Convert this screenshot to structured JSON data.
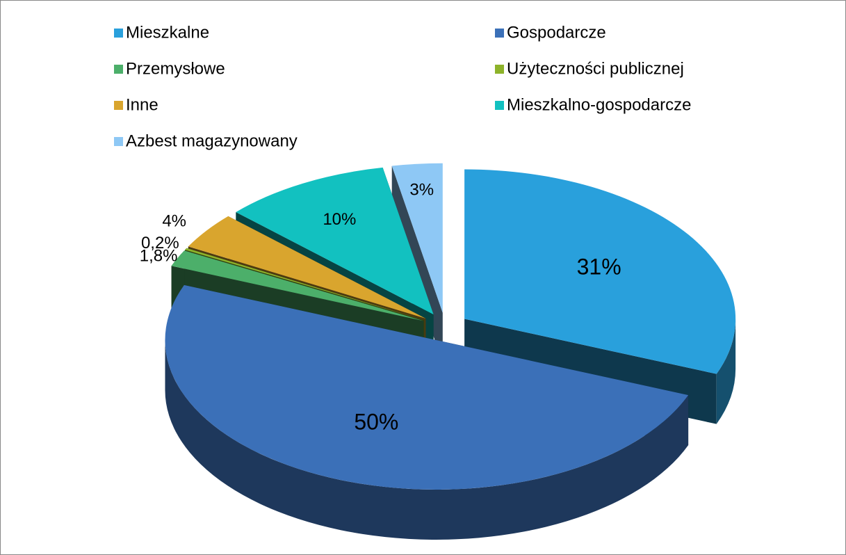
{
  "chart_data": {
    "type": "pie",
    "categories": [
      "Mieszkalne",
      "Gospodarcze",
      "Przemysłowe",
      "Użyteczności publicznej",
      "Inne",
      "Mieszkalno-gospodarcze",
      "Azbest magazynowany"
    ],
    "values": [
      31,
      50,
      1.8,
      0.2,
      4,
      10,
      3
    ],
    "value_labels": [
      "31%",
      "50%",
      "1,8%",
      "0,2%",
      "4%",
      "10%",
      "3%"
    ],
    "colors": [
      "#29a0dc",
      "#3b70b8",
      "#4caf6a",
      "#8db32a",
      "#d9a52e",
      "#12c1c0",
      "#8ec8f5"
    ],
    "legend": "top"
  }
}
